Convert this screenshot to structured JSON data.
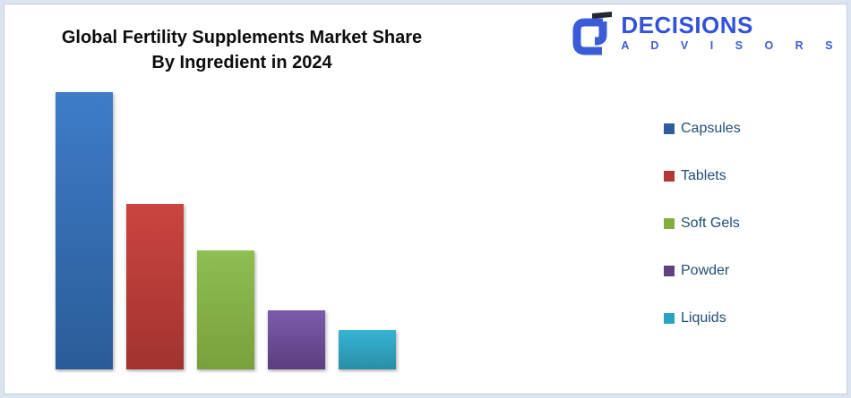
{
  "logo": {
    "name": "DECISIONS",
    "subtitle": "A D V I S O R S",
    "brand_color": "#3152d9",
    "mark_color": "#3a5cd8",
    "mark_accent_color": "#232831"
  },
  "chart_data": {
    "type": "bar",
    "title": "Global Fertility Supplements Market Share By Ingredient in 2024",
    "title_line1": "Global Fertility Supplements Market Share",
    "title_line2": "By Ingredient in 2024",
    "categories": [
      "Capsules",
      "Tablets",
      "Soft Gels",
      "Powder",
      "Liquids"
    ],
    "values": [
      42,
      25,
      18,
      9,
      6
    ],
    "values_are_estimates": true,
    "value_unit": "relative market share (no axis or data labels shown; estimated from bar heights)",
    "xlabel": "",
    "ylabel": "",
    "ylim": [
      0,
      42
    ],
    "grid": false,
    "axes_shown": false,
    "legend_position": "right",
    "legend_text_color": "#1f4e79",
    "bar_colors": [
      {
        "top": "#3e7cc9",
        "bottom": "#2b5c97",
        "legend": "#2e5c9c"
      },
      {
        "top": "#cb4540",
        "bottom": "#a23330",
        "legend": "#b33732"
      },
      {
        "top": "#8fbe52",
        "bottom": "#79a03c",
        "legend": "#84ac41"
      },
      {
        "top": "#7c5cad",
        "bottom": "#5a3e7e",
        "legend": "#5f4184"
      },
      {
        "top": "#38b3d6",
        "bottom": "#2a8ea6",
        "legend": "#2ba3c2"
      }
    ]
  }
}
